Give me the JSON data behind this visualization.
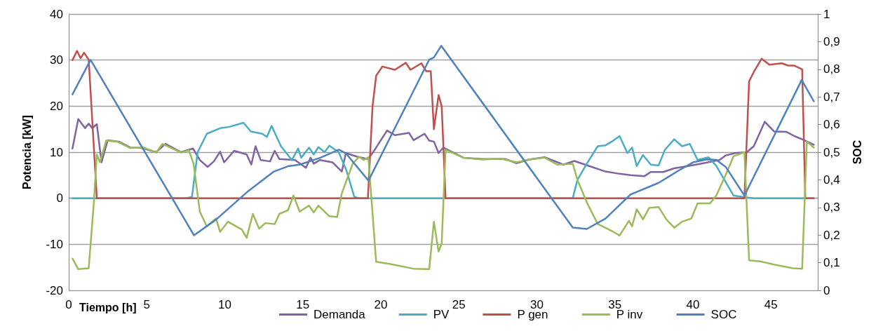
{
  "chart_data": {
    "type": "line",
    "xlabel": "Tiempo [h]",
    "ylabel": "Potencia [kW]",
    "y2label": "SOC",
    "xlim": [
      0,
      48
    ],
    "xticks": [
      0,
      5,
      10,
      15,
      20,
      25,
      30,
      35,
      40,
      45
    ],
    "ylim": [
      -20,
      40
    ],
    "yticks": [
      -20,
      -10,
      0,
      10,
      20,
      30,
      40
    ],
    "y2lim": [
      0,
      1
    ],
    "y2ticks": [
      0,
      {
        "value": 0.1,
        "label": "0,1"
      },
      {
        "value": 0.2,
        "label": "0,2"
      },
      {
        "value": 0.3,
        "label": "0,3"
      },
      {
        "value": 0.4,
        "label": "0,4"
      },
      {
        "value": 0.5,
        "label": "0,5"
      },
      {
        "value": 0.6,
        "label": "0,6"
      },
      {
        "value": 0.7,
        "label": "0,7"
      },
      {
        "value": 0.8,
        "label": "0,8"
      },
      {
        "value": 0.9,
        "label": "0,9"
      },
      1
    ],
    "grid": "y",
    "legend": "bottom",
    "marker": "none",
    "line_style": "solid",
    "series": [
      {
        "name": "Demanda",
        "color": "#8064a2",
        "x": [
          0.24,
          0.61,
          1.05,
          1.28,
          1.5,
          1.8,
          2.1,
          2.5,
          3.2,
          3.95,
          4.7,
          5.6,
          6.2,
          7.2,
          7.96,
          8.4,
          8.9,
          9.3,
          9.7,
          9.96,
          10.6,
          11.4,
          11.7,
          11.97,
          12.3,
          12.9,
          13.2,
          13.5,
          14.5,
          15.2,
          15.5,
          15.7,
          16.1,
          16.9,
          17.5,
          17.76,
          18.5,
          19.2,
          19.7,
          20.4,
          20.9,
          21.8,
          22.1,
          22.8,
          23.1,
          23.4,
          23.7,
          24.0,
          25.3,
          26.5,
          28.0,
          28.7,
          29.5,
          30.5,
          31.7,
          32.4,
          33.35,
          34.4,
          35.3,
          36.0,
          36.9,
          37.3,
          38.1,
          38.8,
          39.7,
          40.5,
          41.7,
          42.1,
          42.7,
          43.46,
          43.9,
          44.6,
          45.2,
          46.0,
          46.5,
          47.0,
          47.75
        ],
        "values": [
          10.8,
          17.2,
          15.2,
          16.2,
          15.2,
          16.1,
          7.8,
          12.6,
          12.3,
          11,
          10.9,
          10,
          11.8,
          10,
          10.8,
          8.3,
          6.8,
          8,
          10.1,
          7.8,
          10.3,
          9.5,
          7.3,
          11.3,
          8.3,
          8,
          10.3,
          8.5,
          8.3,
          6.6,
          8.8,
          7.5,
          8.3,
          7.8,
          5.8,
          9.8,
          9,
          8.5,
          11,
          14.7,
          13.7,
          14.2,
          12.6,
          14,
          12.5,
          12.3,
          9.8,
          11,
          8.8,
          8.5,
          8.5,
          7.6,
          8.4,
          8.9,
          7.3,
          8.1,
          7,
          5.8,
          5.3,
          5,
          4.8,
          5.7,
          5.7,
          6.5,
          7,
          7.5,
          8.3,
          9.3,
          9.8,
          10,
          11.3,
          16.6,
          14.5,
          14.4,
          13.5,
          12.8,
          11.6
        ]
      },
      {
        "name": "PV",
        "color": "#4bacc6",
        "x": [
          0.24,
          7.5,
          7.9,
          8.26,
          8.85,
          9.7,
          10.3,
          11.2,
          11.67,
          12.4,
          12.7,
          13.0,
          13.6,
          14.3,
          14.7,
          14.9,
          15.4,
          15.7,
          16.0,
          16.4,
          16.7,
          17.3,
          17.8,
          18.3,
          18.6,
          32.3,
          32.6,
          33.2,
          33.9,
          34.4,
          34.8,
          35.3,
          35.8,
          36.1,
          36.4,
          36.8,
          37.3,
          37.8,
          38.2,
          38.8,
          39.3,
          39.8,
          40.3,
          41.0,
          41.5,
          42.6,
          43.3,
          43.9,
          47.75
        ],
        "values": [
          0,
          0,
          0.3,
          10,
          14,
          15.2,
          15.5,
          16.4,
          14.5,
          14,
          13.3,
          15.7,
          11.3,
          8.3,
          10.8,
          8.8,
          11,
          9.5,
          11.1,
          10,
          11.4,
          10,
          6,
          0.3,
          0,
          0,
          4,
          7.5,
          11.3,
          11.5,
          12.3,
          13.5,
          9.8,
          11,
          7,
          9.4,
          7.3,
          7.1,
          10.5,
          12.8,
          11.3,
          11.8,
          8.3,
          8.9,
          7,
          0.6,
          0.2,
          0,
          0
        ]
      },
      {
        "name": "P gen",
        "color": "#c0504d",
        "x": [
          0.24,
          0.53,
          0.76,
          0.98,
          1.28,
          1.8,
          19.17,
          19.47,
          19.7,
          20.1,
          20.9,
          21.6,
          21.9,
          22.6,
          22.9,
          23.2,
          23.4,
          23.7,
          23.9,
          24.15,
          43.3,
          43.6,
          43.9,
          44.4,
          44.9,
          45.7,
          46.1,
          46.5,
          47.0,
          47.2,
          47.75
        ],
        "values": [
          30,
          32,
          30.4,
          31.6,
          30.1,
          0,
          0,
          20,
          26.6,
          28.6,
          27.9,
          29.4,
          27.9,
          29.3,
          27.6,
          27.6,
          15,
          22.4,
          20,
          0,
          0,
          25.4,
          27.4,
          30.3,
          29,
          29.3,
          28.8,
          28.8,
          28,
          0,
          0
        ]
      },
      {
        "name": "P inv",
        "color": "#9bbb59",
        "x": [
          0.24,
          0.61,
          1.28,
          1.6,
          1.8,
          2.0,
          2.4,
          3.1,
          3.95,
          4.8,
          5.6,
          6.0,
          7.2,
          7.7,
          8.0,
          8.4,
          8.85,
          9.44,
          9.7,
          10.2,
          11.1,
          11.4,
          11.8,
          12.2,
          12.6,
          13.2,
          13.5,
          14.05,
          14.4,
          14.8,
          15.4,
          15.7,
          16.0,
          16.7,
          17.2,
          17.5,
          18.2,
          18.6,
          18.9,
          19.2,
          19.7,
          20.6,
          22.1,
          23.1,
          23.4,
          23.7,
          23.9,
          24.15,
          25.3,
          26.5,
          27.7,
          28.7,
          29.5,
          30.5,
          31.3,
          32.3,
          32.6,
          33.2,
          33.9,
          34.8,
          35.3,
          35.9,
          36.1,
          36.4,
          36.8,
          37.2,
          37.8,
          38.3,
          38.8,
          39.3,
          39.9,
          40.3,
          41.1,
          41.5,
          42.1,
          42.6,
          43.3,
          43.6,
          44.3,
          45.2,
          46.4,
          47.0,
          47.3,
          47.75
        ],
        "values": [
          -13.1,
          -15.4,
          -15.2,
          -1.4,
          9.5,
          7.8,
          12.5,
          12.3,
          10.9,
          11,
          9.9,
          11.8,
          9.9,
          10.4,
          7.5,
          -2.9,
          -6.1,
          -4.4,
          -7.3,
          -5.1,
          -6.8,
          -8.6,
          -3.4,
          -6.6,
          -5.4,
          -5.6,
          -3.4,
          -2.6,
          0.6,
          -2.9,
          -1.6,
          -3.1,
          -1.6,
          -3.9,
          -4.1,
          1.1,
          7.5,
          9,
          8.3,
          8.9,
          -13.8,
          -14.3,
          -15.3,
          -15.4,
          -5.1,
          -11.6,
          -9.8,
          10.5,
          8.8,
          8.4,
          8.6,
          7.8,
          8.4,
          8.8,
          7.3,
          7.5,
          4,
          -0.9,
          -5.6,
          -7.1,
          -8.1,
          -4.9,
          -6.1,
          -2.4,
          -4.6,
          -2.1,
          -1.9,
          -4.6,
          -6.4,
          -5.1,
          -4.4,
          -1.1,
          -1.1,
          0.6,
          5.1,
          9.1,
          10,
          -13.5,
          -13.7,
          -14.4,
          -15.2,
          -15.3,
          12.3,
          11
        ]
      },
      {
        "name": "SOC",
        "color": "#4f81bd",
        "axis": "y2",
        "x": [
          0.24,
          1.4,
          8.03,
          9.44,
          11.52,
          13.15,
          14.05,
          14.8,
          16.13,
          17.31,
          17.76,
          19.21,
          23.1,
          23.4,
          23.87,
          32.3,
          33.2,
          34.4,
          36.0,
          37.8,
          39.1,
          40.0,
          40.9,
          41.5,
          42.1,
          43.3,
          46.97,
          47.75
        ],
        "values": [
          0.709,
          0.834,
          0.199,
          0.256,
          0.36,
          0.43,
          0.449,
          0.455,
          0.48,
          0.509,
          0.496,
          0.397,
          0.835,
          0.843,
          0.885,
          0.227,
          0.222,
          0.26,
          0.347,
          0.389,
          0.434,
          0.463,
          0.474,
          0.472,
          0.447,
          0.343,
          0.761,
          0.684
        ]
      }
    ]
  }
}
